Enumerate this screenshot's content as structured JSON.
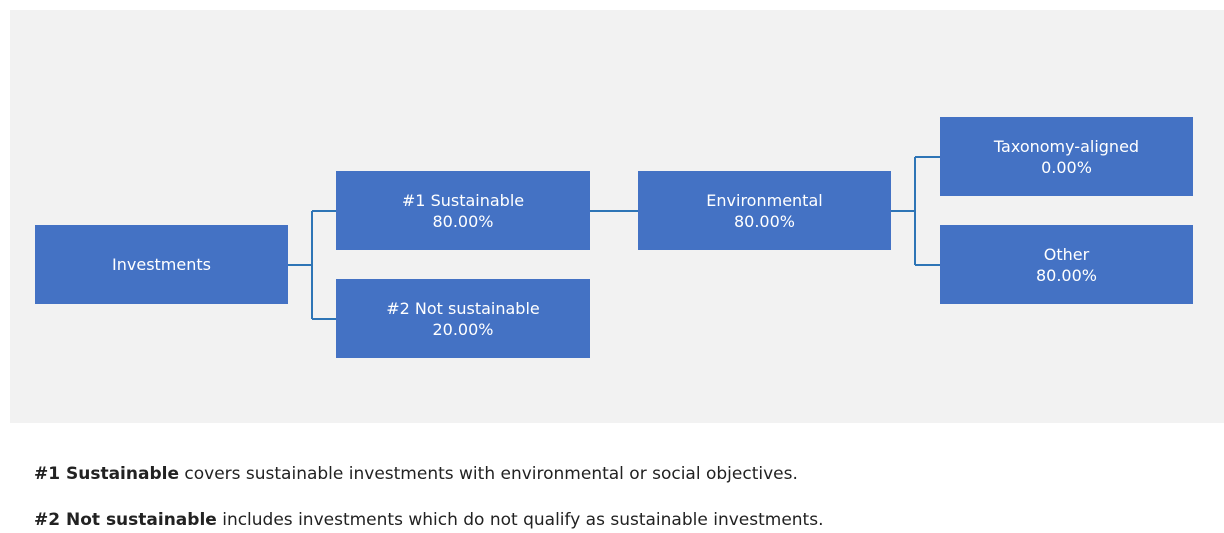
{
  "colors": {
    "node_fill": "#4472c4",
    "connector": "#2e75b6",
    "panel": "#f2f2f2"
  },
  "nodes": {
    "investments": {
      "label": "Investments"
    },
    "sustainable": {
      "label": "#1 Sustainable",
      "value": "80.00%"
    },
    "not_sustainable": {
      "label": "#2 Not sustainable",
      "value": "20.00%"
    },
    "environmental": {
      "label": "Environmental",
      "value": "80.00%"
    },
    "taxonomy": {
      "label": "Taxonomy-aligned",
      "value": "0.00%"
    },
    "other": {
      "label": "Other",
      "value": "80.00%"
    }
  },
  "notes": [
    {
      "term": "#1 Sustainable",
      "text": " covers sustainable investments with environmental or social objectives."
    },
    {
      "term": "#2 Not sustainable",
      "text": " includes investments which do not qualify as sustainable investments."
    }
  ]
}
